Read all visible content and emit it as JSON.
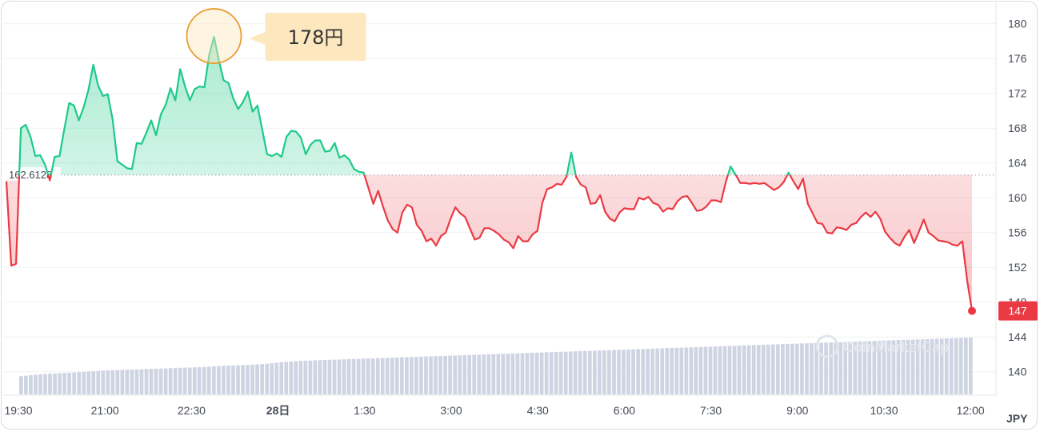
{
  "chart_data": {
    "type": "line",
    "x_ticks": [
      "19:30",
      "21:00",
      "22:30",
      "28日",
      "1:30",
      "3:00",
      "4:30",
      "6:00",
      "7:30",
      "9:00",
      "10:30",
      "12:00"
    ],
    "y_ticks": [
      140,
      144,
      148,
      152,
      156,
      160,
      164,
      168,
      172,
      176,
      180
    ],
    "ylim": [
      137.4,
      182
    ],
    "x_unit": "JPY",
    "reference_line": {
      "value": 162.6128,
      "label": "162.6128"
    },
    "current_price": {
      "value": 147,
      "label": "147"
    },
    "annotation": {
      "label": "178円",
      "value": 178.5
    },
    "colors": {
      "up": "#1ec98a",
      "down": "#ea3943",
      "volume": "#cfd4e3",
      "grid": "#eff1f4",
      "current": "#ea3943",
      "callout": "#fde7bf",
      "callout_ring": "#eb9b32"
    },
    "price": [
      161.9,
      152.2,
      152.4,
      168.0,
      168.4,
      167.0,
      164.8,
      164.9,
      163.8,
      162.0,
      164.7,
      164.8,
      167.9,
      170.9,
      170.6,
      168.9,
      170.4,
      172.4,
      175.3,
      172.9,
      171.7,
      171.9,
      169.0,
      164.2,
      163.8,
      163.4,
      163.3,
      166.3,
      166.2,
      167.5,
      168.9,
      167.2,
      169.6,
      170.7,
      172.6,
      171.2,
      174.8,
      172.8,
      171.2,
      172.5,
      172.8,
      172.7,
      176.4,
      178.5,
      175.8,
      173.5,
      173.2,
      171.4,
      170.2,
      171.0,
      172.2,
      169.9,
      170.6,
      167.8,
      165.0,
      164.8,
      165.1,
      164.7,
      167.0,
      167.7,
      167.6,
      166.9,
      165.0,
      166.1,
      166.6,
      166.6,
      165.3,
      165.4,
      166.3,
      164.6,
      164.9,
      164.4,
      163.3,
      163.0,
      162.9,
      161.1,
      159.3,
      160.8,
      159.0,
      157.4,
      156.4,
      156.0,
      158.3,
      159.2,
      158.9,
      156.9,
      156.2,
      155.0,
      155.3,
      154.5,
      155.6,
      156.0,
      157.6,
      158.9,
      158.2,
      157.8,
      156.5,
      155.2,
      155.4,
      156.5,
      156.5,
      156.2,
      155.8,
      155.2,
      154.9,
      154.2,
      155.6,
      155.0,
      155.0,
      155.8,
      156.2,
      159.4,
      161.0,
      161.2,
      161.6,
      161.5,
      162.4,
      165.2,
      162.4,
      161.5,
      161.2,
      159.3,
      159.4,
      160.3,
      158.4,
      157.6,
      157.3,
      158.3,
      158.8,
      158.7,
      158.7,
      160.0,
      159.8,
      160.1,
      159.4,
      159.2,
      158.4,
      158.8,
      158.7,
      159.6,
      160.1,
      160.2,
      159.4,
      158.5,
      158.6,
      159.0,
      159.7,
      159.7,
      159.5,
      161.8,
      163.6,
      162.7,
      161.7,
      161.7,
      161.6,
      161.7,
      161.6,
      161.7,
      161.3,
      160.9,
      161.2,
      161.8,
      162.9,
      161.9,
      161.0,
      162.2,
      159.3,
      158.2,
      157.1,
      157.0,
      156.0,
      155.9,
      156.6,
      156.5,
      156.3,
      156.9,
      157.1,
      157.8,
      158.3,
      157.8,
      158.4,
      157.6,
      156.1,
      155.4,
      154.8,
      154.5,
      155.5,
      156.3,
      154.8,
      156.1,
      157.5,
      156.0,
      155.6,
      155.1,
      155.0,
      154.9,
      154.6,
      154.5,
      155.0,
      150.5,
      147.0
    ],
    "volume_relative": [
      0.32,
      0.35,
      0.37,
      0.38,
      0.4,
      0.42,
      0.43,
      0.44,
      0.45,
      0.46,
      0.47,
      0.48,
      0.5,
      0.51,
      0.52,
      0.54,
      0.57,
      0.59,
      0.6,
      0.61,
      0.62,
      0.63,
      0.64,
      0.65,
      0.66,
      0.67,
      0.68,
      0.69,
      0.7,
      0.71,
      0.72,
      0.73,
      0.74,
      0.75,
      0.76,
      0.77,
      0.78,
      0.79,
      0.8,
      0.81,
      0.82,
      0.83,
      0.84,
      0.85,
      0.86,
      0.87,
      0.88,
      0.89,
      0.9,
      0.91,
      0.92,
      0.93,
      0.94,
      0.95,
      0.96,
      0.97,
      0.98,
      0.99,
      1.0
    ],
    "watermark": "CoinMarketCap"
  }
}
